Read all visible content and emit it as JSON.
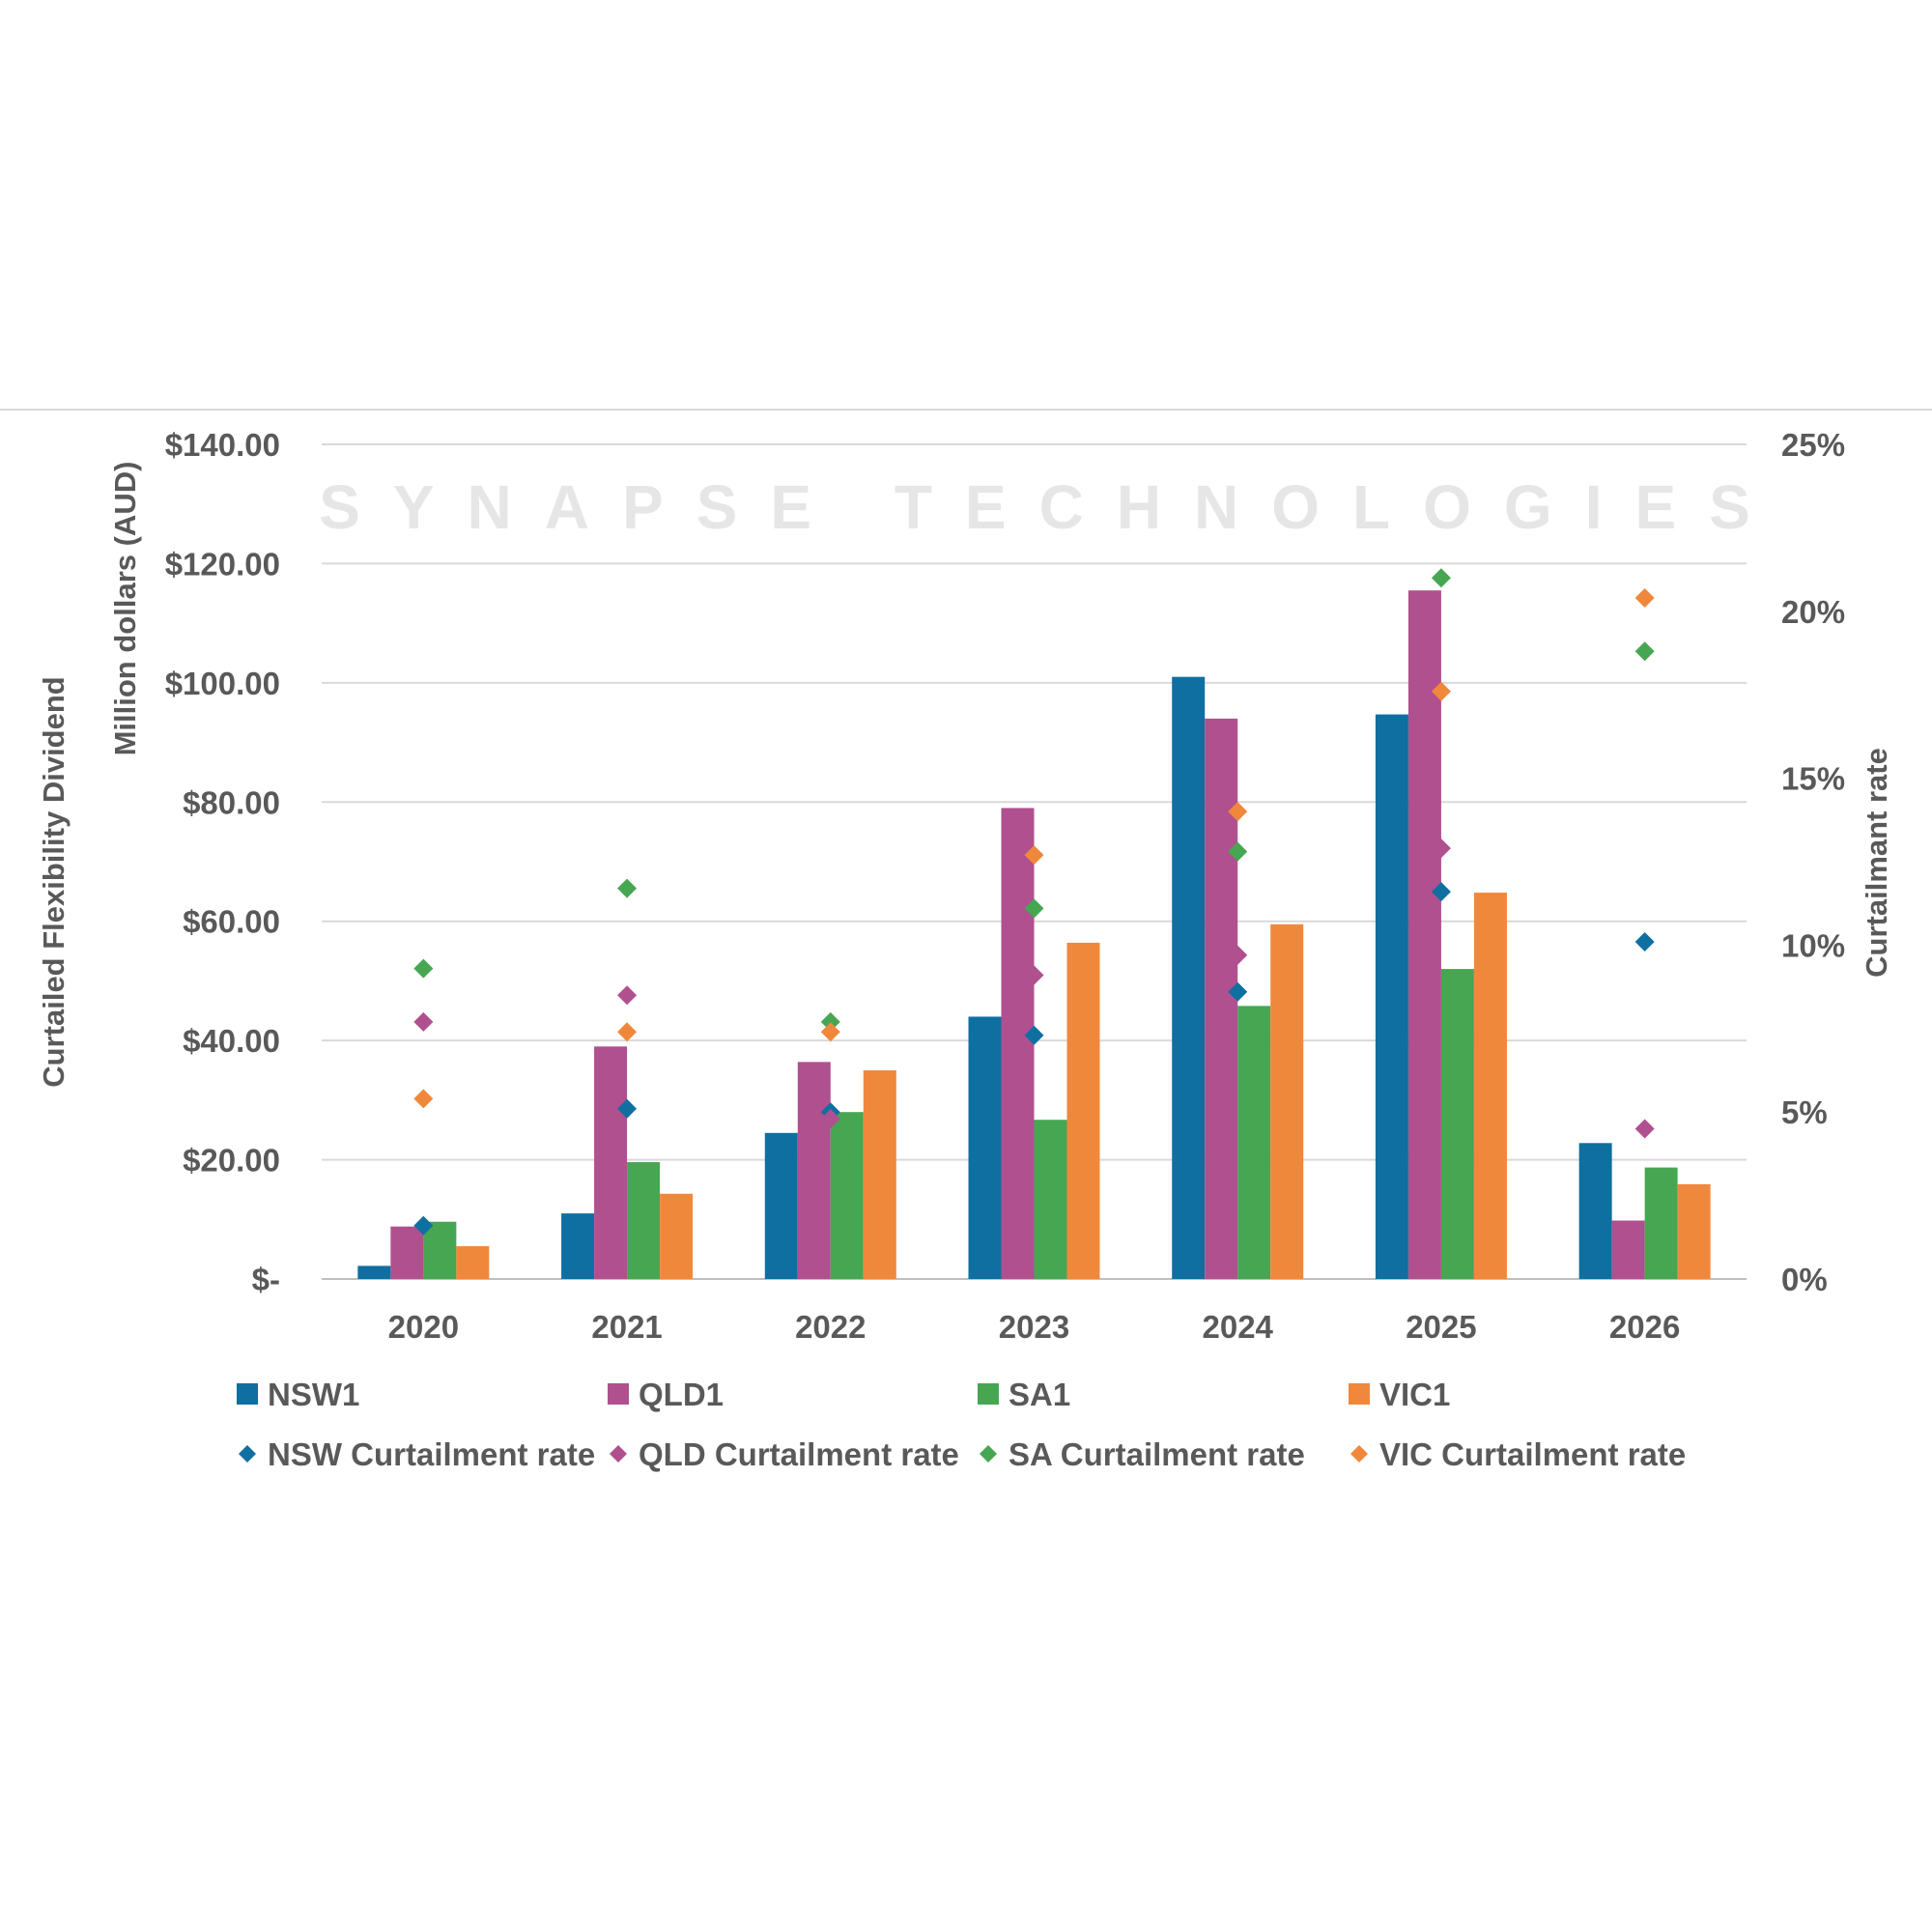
{
  "watermark": "SYNAPSE TECHNOLOGIES",
  "chart_data": {
    "type": "bar",
    "categories": [
      "2020",
      "2021",
      "2022",
      "2023",
      "2024",
      "2025",
      "2026"
    ],
    "ylabel_outer": "Curtailed Flexibility Dividend",
    "ylabel_inner": "Million dollars (AUD)",
    "y2label": "Curtailmant rate",
    "ylim": [
      0,
      140
    ],
    "y2lim": [
      0,
      25
    ],
    "y_ticks": [
      "$-",
      "$20.00",
      "$40.00",
      "$60.00",
      "$80.00",
      "$100.00",
      "$120.00",
      "$140.00"
    ],
    "y2_ticks": [
      "0%",
      "5%",
      "10%",
      "15%",
      "20%",
      "25%"
    ],
    "grid": true,
    "legend_position": "bottom",
    "series": [
      {
        "name": "NSW1",
        "type": "bar",
        "axis": "left",
        "color": "#0f6fa0",
        "values": [
          2.2,
          11.0,
          24.5,
          44.0,
          101.0,
          94.7,
          22.8
        ]
      },
      {
        "name": "QLD1",
        "type": "bar",
        "axis": "left",
        "color": "#b0508f",
        "values": [
          8.8,
          39.0,
          36.4,
          79.0,
          94.0,
          115.5,
          9.8
        ]
      },
      {
        "name": "SA1",
        "type": "bar",
        "axis": "left",
        "color": "#47a652",
        "values": [
          9.6,
          19.6,
          28.0,
          26.7,
          45.8,
          52.0,
          18.7
        ]
      },
      {
        "name": "VIC1",
        "type": "bar",
        "axis": "left",
        "color": "#f0883c",
        "values": [
          5.5,
          14.3,
          35.0,
          56.4,
          59.5,
          64.8,
          15.9
        ]
      },
      {
        "name": "NSW Curtailment rate",
        "type": "scatter",
        "axis": "right",
        "color": "#0f6fa0",
        "values": [
          1.6,
          5.1,
          5.0,
          7.3,
          8.6,
          11.6,
          10.1
        ]
      },
      {
        "name": "QLD Curtailment rate",
        "type": "scatter",
        "axis": "right",
        "color": "#b0508f",
        "values": [
          7.7,
          8.5,
          4.8,
          9.1,
          9.7,
          12.9,
          4.5
        ]
      },
      {
        "name": "SA Curtailment rate",
        "type": "scatter",
        "axis": "right",
        "color": "#47a652",
        "values": [
          9.3,
          11.7,
          7.7,
          11.1,
          12.8,
          21.0,
          18.8
        ]
      },
      {
        "name": "VIC Curtailment rate",
        "type": "scatter",
        "axis": "right",
        "color": "#f0883c",
        "values": [
          5.4,
          7.4,
          7.4,
          12.7,
          14.0,
          17.6,
          20.4
        ]
      }
    ]
  }
}
